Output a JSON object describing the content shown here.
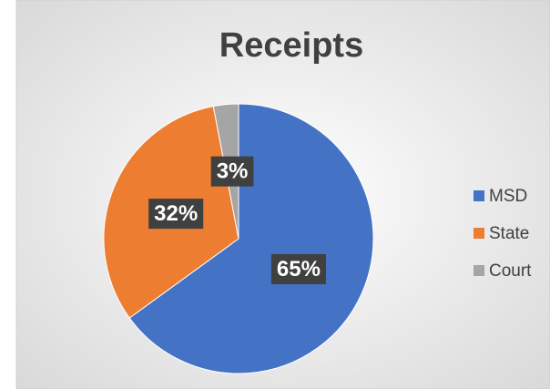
{
  "chart_data": {
    "type": "pie",
    "title": "Receipts",
    "categories": [
      "MSD",
      "State",
      "Court"
    ],
    "values": [
      65,
      32,
      3
    ],
    "value_labels": [
      "65%",
      "32%",
      "3%"
    ],
    "colors": [
      "#4472c4",
      "#ed7d31",
      "#a5a5a5"
    ],
    "legend": "right"
  }
}
